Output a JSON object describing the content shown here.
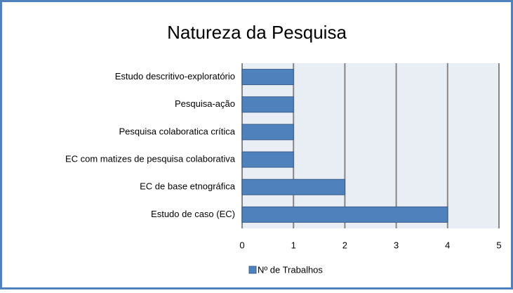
{
  "chart_data": {
    "type": "bar",
    "orientation": "horizontal",
    "title": "Natureza da Pesquisa",
    "categories": [
      "Estudo descritivo-exploratório",
      "Pesquisa-ação",
      "Pesquisa colaboratica crítica",
      "EC com matizes  de pesquisa colaborativa",
      "EC de base  etnográfica",
      "Estudo de caso (EC)"
    ],
    "series": [
      {
        "name": "Nº de Trabalhos",
        "color": "#4f81bd",
        "values": [
          1,
          1,
          1,
          1,
          2,
          4
        ]
      }
    ],
    "xlim": [
      0,
      5
    ],
    "xticks": [
      0,
      1,
      2,
      3,
      4,
      5
    ],
    "grid": true,
    "legend": "bottom"
  }
}
